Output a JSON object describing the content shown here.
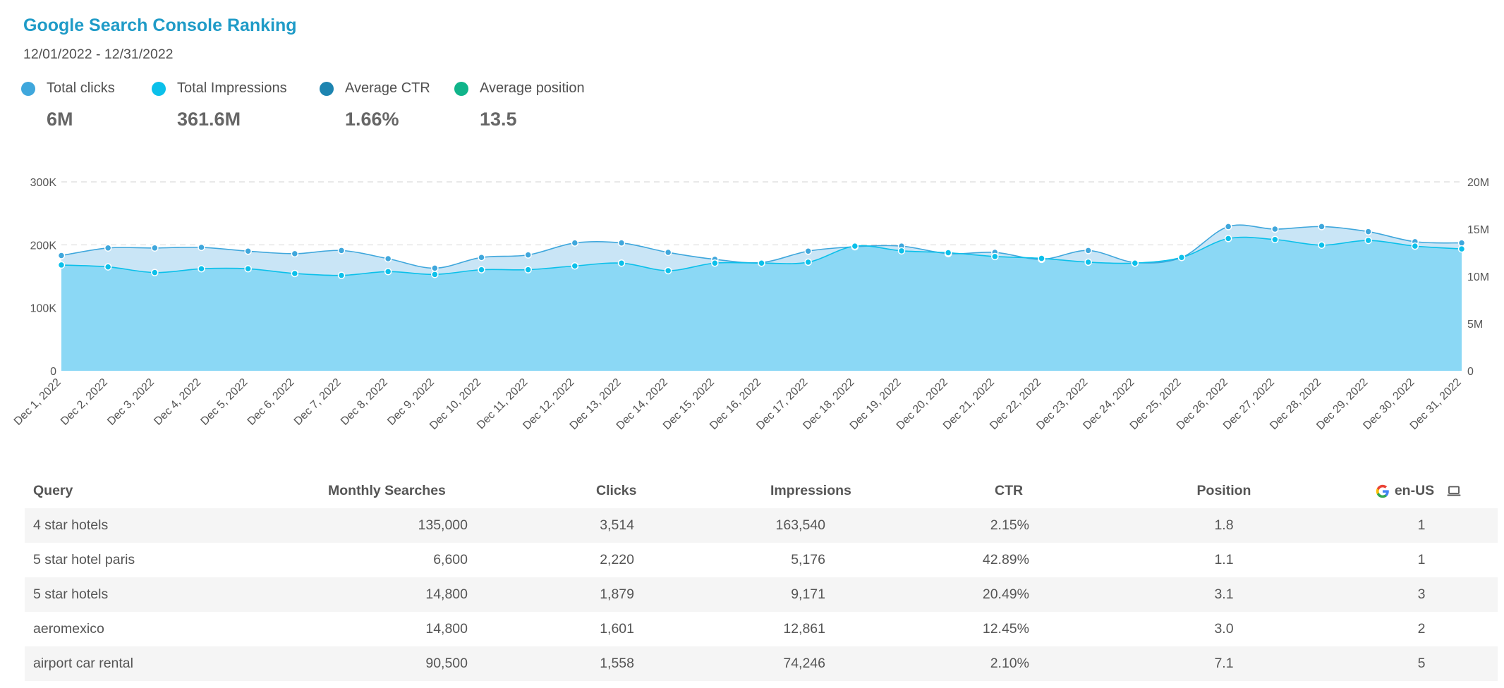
{
  "header": {
    "title": "Google Search Console Ranking",
    "date_range": "12/01/2022 - 12/31/2022"
  },
  "kpis": [
    {
      "label": "Total clicks",
      "value": "6M",
      "color": "#3fa7dc"
    },
    {
      "label": "Total Impressions",
      "value": "361.6M",
      "color": "#0bc0ea"
    },
    {
      "label": "Average CTR",
      "value": "1.66%",
      "color": "#1d84b0"
    },
    {
      "label": "Average position",
      "value": "13.5",
      "color": "#10b48a"
    }
  ],
  "chart_data": {
    "type": "area",
    "categories": [
      "Dec 1, 2022",
      "Dec 2, 2022",
      "Dec 3, 2022",
      "Dec 4, 2022",
      "Dec 5, 2022",
      "Dec 6, 2022",
      "Dec 7, 2022",
      "Dec 8, 2022",
      "Dec 9, 2022",
      "Dec 10, 2022",
      "Dec 11, 2022",
      "Dec 12, 2022",
      "Dec 13, 2022",
      "Dec 14, 2022",
      "Dec 15, 2022",
      "Dec 16, 2022",
      "Dec 17, 2022",
      "Dec 18, 2022",
      "Dec 19, 2022",
      "Dec 20, 2022",
      "Dec 21, 2022",
      "Dec 22, 2022",
      "Dec 23, 2022",
      "Dec 24, 2022",
      "Dec 25, 2022",
      "Dec 26, 2022",
      "Dec 27, 2022",
      "Dec 28, 2022",
      "Dec 29, 2022",
      "Dec 30, 2022",
      "Dec 31, 2022"
    ],
    "series": [
      {
        "name": "Total clicks",
        "axis": "left",
        "color": "#3fa7dc",
        "values": [
          183000,
          195000,
          195000,
          196000,
          190000,
          186000,
          191000,
          178000,
          163000,
          180000,
          184000,
          203000,
          203000,
          188000,
          177000,
          172000,
          190000,
          197000,
          198000,
          186000,
          188000,
          177000,
          191000,
          172000,
          180000,
          229000,
          225000,
          229000,
          221000,
          205000,
          203000
        ]
      },
      {
        "name": "Total Impressions",
        "axis": "right",
        "color": "#0bc0ea",
        "values": [
          11200000,
          11000000,
          10400000,
          10800000,
          10800000,
          10300000,
          10100000,
          10500000,
          10200000,
          10700000,
          10700000,
          11100000,
          11400000,
          10600000,
          11400000,
          11400000,
          11500000,
          13200000,
          12700000,
          12500000,
          12100000,
          11900000,
          11500000,
          11400000,
          12000000,
          14000000,
          13900000,
          13300000,
          13800000,
          13200000,
          12900000
        ]
      }
    ],
    "y_left": {
      "ticks": [
        "0",
        "100K",
        "200K",
        "300K"
      ],
      "range": [
        0,
        300000
      ]
    },
    "y_right": {
      "ticks": [
        "0",
        "5M",
        "10M",
        "15M",
        "20M"
      ],
      "range": [
        0,
        20000000
      ]
    },
    "grid": true
  },
  "table": {
    "headers": {
      "query": "Query",
      "monthly_searches": "Monthly Searches",
      "clicks": "Clicks",
      "impressions": "Impressions",
      "ctr": "CTR",
      "position": "Position",
      "locale": "en-US"
    },
    "icons": {
      "engine": "google-icon",
      "device": "laptop-icon"
    },
    "rows": [
      {
        "query": "4 star hotels",
        "monthly_searches": "135,000",
        "clicks": "3,514",
        "impressions": "163,540",
        "ctr": "2.15%",
        "position": "1.8",
        "rank": "1"
      },
      {
        "query": "5 star hotel paris",
        "monthly_searches": "6,600",
        "clicks": "2,220",
        "impressions": "5,176",
        "ctr": "42.89%",
        "position": "1.1",
        "rank": "1"
      },
      {
        "query": "5 star hotels",
        "monthly_searches": "14,800",
        "clicks": "1,879",
        "impressions": "9,171",
        "ctr": "20.49%",
        "position": "3.1",
        "rank": "3"
      },
      {
        "query": "aeromexico",
        "monthly_searches": "14,800",
        "clicks": "1,601",
        "impressions": "12,861",
        "ctr": "12.45%",
        "position": "3.0",
        "rank": "2"
      },
      {
        "query": "airport car rental",
        "monthly_searches": "90,500",
        "clicks": "1,558",
        "impressions": "74,246",
        "ctr": "2.10%",
        "position": "7.1",
        "rank": "5"
      }
    ]
  }
}
